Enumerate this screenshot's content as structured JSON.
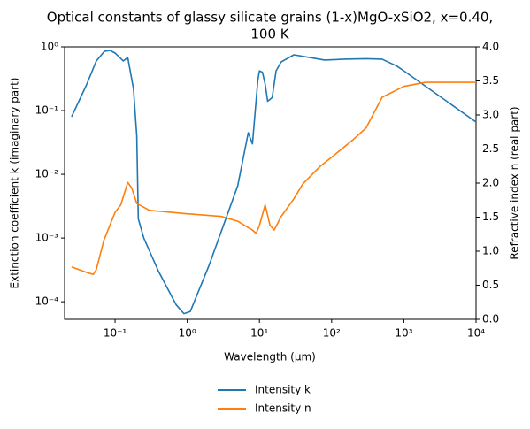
{
  "chart_data": {
    "type": "line",
    "title": "Optical constants of glassy silicate grains (1-x)MgO-xSiO2, x=0.40,",
    "subtitle": "100 K",
    "x_label": "Wavelength (μm)",
    "y_label": "Extinction coefficient k (imaginary part)",
    "y2_label": "Refractive index n (real part)",
    "xscale": "log",
    "yscale": "log",
    "xlim": [
      0.02,
      10000
    ],
    "ylim": [
      5.3e-05,
      1
    ],
    "y2lim": [
      0,
      4
    ],
    "xticks": [
      {
        "value": 0.1,
        "label": "10⁻¹"
      },
      {
        "value": 1,
        "label": "10⁰"
      },
      {
        "value": 10,
        "label": "10¹"
      },
      {
        "value": 100,
        "label": "10²"
      },
      {
        "value": 1000,
        "label": "10³"
      },
      {
        "value": 10000,
        "label": "10⁴"
      }
    ],
    "yticks": [
      {
        "value": 0.0001,
        "label": "10⁻⁴"
      },
      {
        "value": 0.001,
        "label": "10⁻³"
      },
      {
        "value": 0.01,
        "label": "10⁻²"
      },
      {
        "value": 0.1,
        "label": "10⁻¹"
      },
      {
        "value": 1,
        "label": "10⁰"
      }
    ],
    "y2ticks": [
      {
        "value": 0,
        "label": "0.0"
      },
      {
        "value": 0.5,
        "label": "0.5"
      },
      {
        "value": 1,
        "label": "1.0"
      },
      {
        "value": 1.5,
        "label": "1.5"
      },
      {
        "value": 2,
        "label": "2.0"
      },
      {
        "value": 2.5,
        "label": "2.5"
      },
      {
        "value": 3,
        "label": "3.0"
      },
      {
        "value": 3.5,
        "label": "3.5"
      },
      {
        "value": 4,
        "label": "4.0"
      }
    ],
    "legend": "below",
    "series": [
      {
        "name": "Intensity k",
        "color": "#1f77b4",
        "x": [
          0.025,
          0.04,
          0.055,
          0.071,
          0.085,
          0.1,
          0.13,
          0.15,
          0.18,
          0.2,
          0.21,
          0.25,
          0.4,
          0.7,
          0.9,
          1.1,
          2,
          5,
          7,
          8,
          9.5,
          10,
          11,
          12,
          13,
          15,
          17,
          20,
          30,
          50,
          80,
          150,
          300,
          500,
          800,
          1000,
          10000
        ],
        "values": [
          0.08,
          0.25,
          0.6,
          0.85,
          0.88,
          0.8,
          0.6,
          0.68,
          0.22,
          0.04,
          0.002,
          0.001,
          0.0003,
          9e-05,
          6.5e-05,
          7e-05,
          0.00037,
          0.0066,
          0.045,
          0.03,
          0.3,
          0.42,
          0.4,
          0.26,
          0.14,
          0.16,
          0.42,
          0.58,
          0.75,
          0.68,
          0.62,
          0.64,
          0.65,
          0.64,
          0.5,
          0.42,
          0.066
        ]
      },
      {
        "name": "Intensity n",
        "color": "#ff7f0e",
        "axis": "y2",
        "x": [
          0.025,
          0.04,
          0.05,
          0.055,
          0.07,
          0.1,
          0.12,
          0.15,
          0.17,
          0.2,
          0.3,
          1,
          3,
          5,
          8,
          9,
          10,
          12,
          14,
          16,
          20,
          30,
          40,
          70,
          100,
          200,
          300,
          500,
          1000,
          2000,
          10000
        ],
        "values": [
          0.77,
          0.69,
          0.66,
          0.73,
          1.16,
          1.57,
          1.68,
          2.01,
          1.93,
          1.7,
          1.6,
          1.55,
          1.51,
          1.44,
          1.31,
          1.26,
          1.38,
          1.68,
          1.38,
          1.31,
          1.51,
          1.77,
          1.99,
          2.25,
          2.38,
          2.64,
          2.81,
          3.26,
          3.42,
          3.48,
          3.48
        ]
      }
    ]
  }
}
